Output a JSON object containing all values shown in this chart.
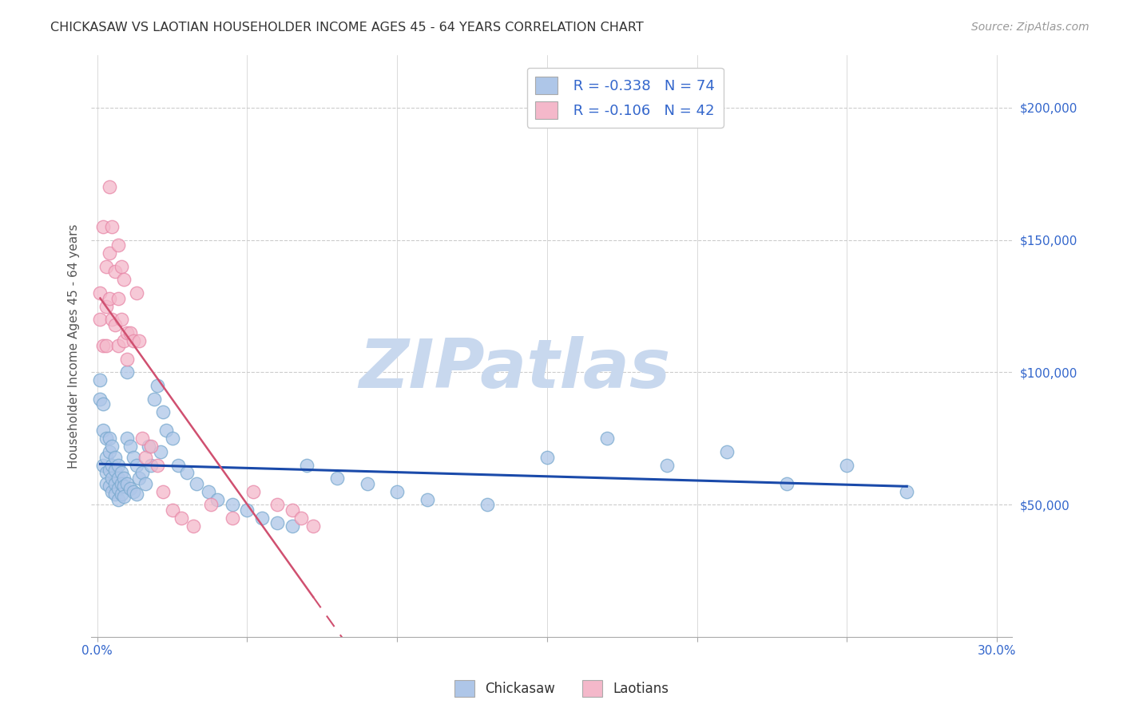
{
  "title": "CHICKASAW VS LAOTIAN HOUSEHOLDER INCOME AGES 45 - 64 YEARS CORRELATION CHART",
  "source": "Source: ZipAtlas.com",
  "ylabel": "Householder Income Ages 45 - 64 years",
  "xlim": [
    -0.002,
    0.305
  ],
  "ylim": [
    0,
    220000
  ],
  "yticks": [
    50000,
    100000,
    150000,
    200000
  ],
  "ytick_labels": [
    "$50,000",
    "$100,000",
    "$150,000",
    "$200,000"
  ],
  "xticks": [
    0.0,
    0.05,
    0.1,
    0.15,
    0.2,
    0.25,
    0.3
  ],
  "xtick_labels": [
    "0.0%",
    "",
    "",
    "",
    "",
    "",
    "30.0%"
  ],
  "background_color": "#ffffff",
  "grid_color": "#cccccc",
  "watermark": "ZIPatlas",
  "watermark_color": "#c8d8ee",
  "chickasaw_color": "#aec6e8",
  "chickasaw_edge_color": "#7aaacf",
  "laotian_color": "#f4b8ca",
  "laotian_edge_color": "#e888a8",
  "chickasaw_line_color": "#1a4aaa",
  "laotian_line_color": "#d05070",
  "legend_r1": "R = -0.338",
  "legend_n1": "N = 74",
  "legend_r2": "R = -0.106",
  "legend_n2": "N = 42",
  "chickasaw_x": [
    0.001,
    0.001,
    0.002,
    0.002,
    0.002,
    0.003,
    0.003,
    0.003,
    0.003,
    0.004,
    0.004,
    0.004,
    0.004,
    0.005,
    0.005,
    0.005,
    0.005,
    0.006,
    0.006,
    0.006,
    0.006,
    0.007,
    0.007,
    0.007,
    0.007,
    0.008,
    0.008,
    0.008,
    0.009,
    0.009,
    0.009,
    0.01,
    0.01,
    0.01,
    0.011,
    0.011,
    0.012,
    0.012,
    0.013,
    0.013,
    0.014,
    0.015,
    0.016,
    0.017,
    0.018,
    0.019,
    0.02,
    0.021,
    0.022,
    0.023,
    0.025,
    0.027,
    0.03,
    0.033,
    0.037,
    0.04,
    0.045,
    0.05,
    0.055,
    0.06,
    0.065,
    0.07,
    0.08,
    0.09,
    0.1,
    0.11,
    0.13,
    0.15,
    0.17,
    0.19,
    0.21,
    0.23,
    0.25,
    0.27
  ],
  "chickasaw_y": [
    97000,
    90000,
    88000,
    78000,
    65000,
    75000,
    68000,
    62000,
    58000,
    75000,
    70000,
    63000,
    57000,
    72000,
    65000,
    60000,
    55000,
    68000,
    63000,
    58000,
    54000,
    65000,
    60000,
    56000,
    52000,
    62000,
    58000,
    54000,
    60000,
    57000,
    53000,
    100000,
    75000,
    58000,
    72000,
    56000,
    68000,
    55000,
    65000,
    54000,
    60000,
    62000,
    58000,
    72000,
    65000,
    90000,
    95000,
    70000,
    85000,
    78000,
    75000,
    65000,
    62000,
    58000,
    55000,
    52000,
    50000,
    48000,
    45000,
    43000,
    42000,
    65000,
    60000,
    58000,
    55000,
    52000,
    50000,
    68000,
    75000,
    65000,
    70000,
    58000,
    65000,
    55000
  ],
  "laotian_x": [
    0.001,
    0.001,
    0.002,
    0.002,
    0.003,
    0.003,
    0.003,
    0.004,
    0.004,
    0.004,
    0.005,
    0.005,
    0.006,
    0.006,
    0.007,
    0.007,
    0.007,
    0.008,
    0.008,
    0.009,
    0.009,
    0.01,
    0.01,
    0.011,
    0.012,
    0.013,
    0.014,
    0.015,
    0.016,
    0.018,
    0.02,
    0.022,
    0.025,
    0.028,
    0.032,
    0.038,
    0.045,
    0.052,
    0.06,
    0.065,
    0.068,
    0.072
  ],
  "laotian_y": [
    130000,
    120000,
    155000,
    110000,
    140000,
    125000,
    110000,
    170000,
    145000,
    128000,
    155000,
    120000,
    138000,
    118000,
    148000,
    128000,
    110000,
    140000,
    120000,
    135000,
    112000,
    115000,
    105000,
    115000,
    112000,
    130000,
    112000,
    75000,
    68000,
    72000,
    65000,
    55000,
    48000,
    45000,
    42000,
    50000,
    45000,
    55000,
    50000,
    48000,
    45000,
    42000
  ]
}
